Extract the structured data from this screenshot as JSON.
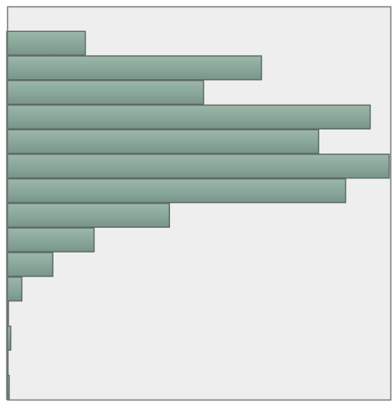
{
  "chart_data": {
    "type": "bar",
    "orientation": "horizontal",
    "values": [
      0,
      99,
      321,
      248,
      458,
      393,
      482,
      427,
      205,
      110,
      58,
      19,
      2,
      5,
      1,
      3
    ],
    "xlim": [
      0,
      482
    ],
    "title": "",
    "xlabel": "",
    "ylabel": "",
    "grid": false,
    "legend": "none",
    "colors": {
      "bar_fill": "#8aa89a",
      "bar_fill_highlight": "#9bb8aa",
      "bar_fill_shadow": "#77958a",
      "bar_stroke": "#5f6a66",
      "plot_background": "#eeeeee",
      "frame": "#777777",
      "page_background": "#ffffff"
    }
  }
}
